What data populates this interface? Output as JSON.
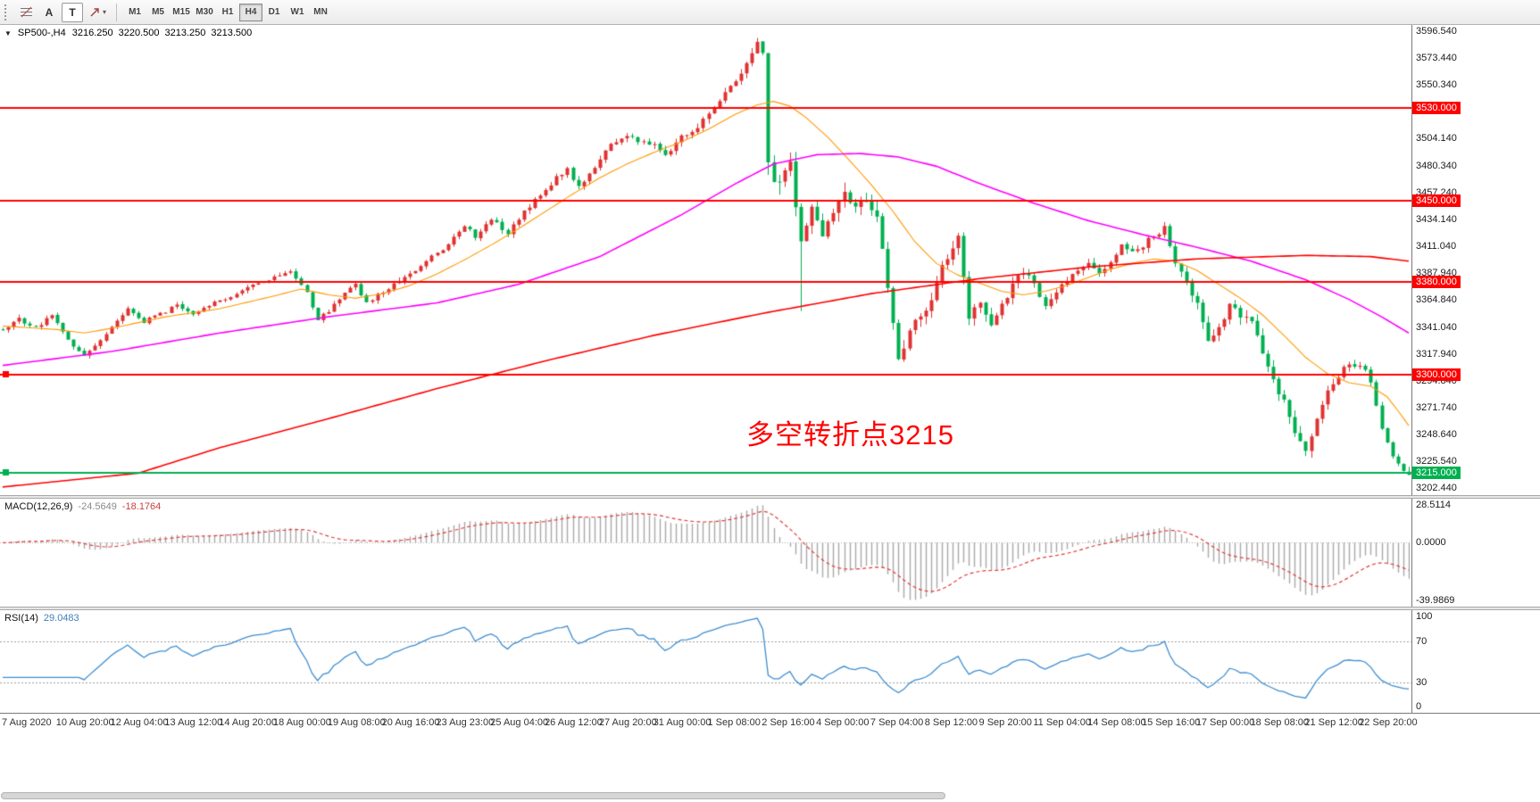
{
  "toolbar": {
    "text_tool_label": "A",
    "text_label_tool_label": "T",
    "timeframes": [
      {
        "label": "M1",
        "active": false
      },
      {
        "label": "M5",
        "active": false
      },
      {
        "label": "M15",
        "active": false
      },
      {
        "label": "M30",
        "active": false
      },
      {
        "label": "H1",
        "active": false
      },
      {
        "label": "H4",
        "active": true
      },
      {
        "label": "D1",
        "active": false
      },
      {
        "label": "W1",
        "active": false
      },
      {
        "label": "MN",
        "active": false
      }
    ]
  },
  "main_chart": {
    "title_symbol": "SP500-,H4",
    "ohlc": {
      "open": "3216.250",
      "high": "3220.500",
      "low": "3213.250",
      "close": "3213.500"
    },
    "annotation": {
      "text": "多空转折点3215",
      "color": "#ff0000"
    },
    "y_axis_labels": [
      "3596.540",
      "3573.440",
      "3550.340",
      "3527.240",
      "3504.140",
      "3480.340",
      "3457.240",
      "3434.140",
      "3411.040",
      "3387.940",
      "3364.840",
      "3341.040",
      "3317.940",
      "3294.840",
      "3271.740",
      "3248.640",
      "3225.540",
      "3202.440"
    ]
  },
  "macd_panel": {
    "label": "MACD(12,26,9)",
    "value_main": "-24.5649",
    "value_signal": "-18.1764",
    "axis": {
      "top": "28.5114",
      "zero": "0.0000",
      "bottom": "-39.9869"
    }
  },
  "rsi_panel": {
    "label": "RSI(14)",
    "value": "29.0483",
    "axis": {
      "top": "100",
      "upper": "70",
      "lower": "30",
      "bottom": "0"
    }
  },
  "chart_data": {
    "type": "candlestick",
    "symbol": "SP500-",
    "timeframe": "H4",
    "bar_count": 260,
    "y_range": [
      3196,
      3602
    ],
    "x_label_step_bars": 10,
    "x_labels": [
      "7 Aug 2020",
      "10 Aug 20:00",
      "12 Aug 04:00",
      "13 Aug 12:00",
      "14 Aug 20:00",
      "18 Aug 00:00",
      "19 Aug 08:00",
      "20 Aug 16:00",
      "23 Aug 23:00",
      "25 Aug 04:00",
      "26 Aug 12:00",
      "27 Aug 20:00",
      "31 Aug 00:00",
      "1 Sep 08:00",
      "2 Sep 16:00",
      "4 Sep 00:00",
      "7 Sep 04:00",
      "8 Sep 12:00",
      "9 Sep 20:00",
      "11 Sep 04:00",
      "14 Sep 08:00",
      "15 Sep 16:00",
      "17 Sep 00:00",
      "18 Sep 08:00",
      "21 Sep 12:00",
      "22 Sep 20:00"
    ],
    "candle_colors": {
      "bull": "#e03232",
      "bear": "#00b050"
    },
    "current_bar": {
      "open": 3216.25,
      "high": 3220.5,
      "low": 3213.25,
      "close": 3213.5
    },
    "close_path": [
      [
        0,
        3338
      ],
      [
        3,
        3348
      ],
      [
        6,
        3340
      ],
      [
        9,
        3352
      ],
      [
        12,
        3330
      ],
      [
        15,
        3316
      ],
      [
        17,
        3326
      ],
      [
        20,
        3340
      ],
      [
        23,
        3356
      ],
      [
        26,
        3346
      ],
      [
        29,
        3352
      ],
      [
        32,
        3360
      ],
      [
        35,
        3352
      ],
      [
        38,
        3360
      ],
      [
        41,
        3366
      ],
      [
        44,
        3372
      ],
      [
        47,
        3380
      ],
      [
        50,
        3384
      ],
      [
        53,
        3390
      ],
      [
        56,
        3370
      ],
      [
        58,
        3348
      ],
      [
        60,
        3355
      ],
      [
        63,
        3372
      ],
      [
        65,
        3378
      ],
      [
        67,
        3362
      ],
      [
        70,
        3372
      ],
      [
        73,
        3382
      ],
      [
        76,
        3390
      ],
      [
        79,
        3402
      ],
      [
        82,
        3412
      ],
      [
        85,
        3428
      ],
      [
        87,
        3420
      ],
      [
        90,
        3434
      ],
      [
        93,
        3422
      ],
      [
        96,
        3440
      ],
      [
        99,
        3455
      ],
      [
        102,
        3470
      ],
      [
        104,
        3477
      ],
      [
        106,
        3462
      ],
      [
        109,
        3480
      ],
      [
        112,
        3498
      ],
      [
        115,
        3508
      ],
      [
        118,
        3500
      ],
      [
        120,
        3498
      ],
      [
        122,
        3488
      ],
      [
        125,
        3505
      ],
      [
        128,
        3515
      ],
      [
        130,
        3526
      ],
      [
        133,
        3542
      ],
      [
        135,
        3552
      ],
      [
        137,
        3568
      ],
      [
        139,
        3585
      ],
      [
        140,
        3577
      ],
      [
        141,
        3480
      ],
      [
        143,
        3465
      ],
      [
        145,
        3480
      ],
      [
        147,
        3420
      ],
      [
        149,
        3445
      ],
      [
        151,
        3420
      ],
      [
        153,
        3440
      ],
      [
        155,
        3455
      ],
      [
        157,
        3445
      ],
      [
        159,
        3452
      ],
      [
        161,
        3440
      ],
      [
        163,
        3372
      ],
      [
        165,
        3310
      ],
      [
        167,
        3340
      ],
      [
        169,
        3352
      ],
      [
        171,
        3365
      ],
      [
        173,
        3392
      ],
      [
        175,
        3410
      ],
      [
        176,
        3422
      ],
      [
        178,
        3352
      ],
      [
        180,
        3365
      ],
      [
        182,
        3345
      ],
      [
        184,
        3360
      ],
      [
        186,
        3378
      ],
      [
        188,
        3388
      ],
      [
        190,
        3380
      ],
      [
        192,
        3360
      ],
      [
        194,
        3372
      ],
      [
        196,
        3382
      ],
      [
        198,
        3390
      ],
      [
        200,
        3395
      ],
      [
        202,
        3388
      ],
      [
        204,
        3398
      ],
      [
        206,
        3412
      ],
      [
        208,
        3405
      ],
      [
        210,
        3412
      ],
      [
        212,
        3420
      ],
      [
        214,
        3426
      ],
      [
        216,
        3398
      ],
      [
        218,
        3380
      ],
      [
        220,
        3360
      ],
      [
        222,
        3330
      ],
      [
        224,
        3340
      ],
      [
        226,
        3360
      ],
      [
        228,
        3352
      ],
      [
        230,
        3345
      ],
      [
        232,
        3320
      ],
      [
        234,
        3298
      ],
      [
        236,
        3275
      ],
      [
        238,
        3248
      ],
      [
        240,
        3235
      ],
      [
        242,
        3265
      ],
      [
        244,
        3288
      ],
      [
        246,
        3300
      ],
      [
        248,
        3308
      ],
      [
        250,
        3310
      ],
      [
        252,
        3295
      ],
      [
        254,
        3255
      ],
      [
        256,
        3228
      ],
      [
        258,
        3218
      ],
      [
        259,
        3213.5
      ]
    ],
    "volatility_path": [
      [
        0,
        5
      ],
      [
        60,
        5
      ],
      [
        80,
        6
      ],
      [
        120,
        7
      ],
      [
        138,
        9
      ],
      [
        141,
        22
      ],
      [
        150,
        16
      ],
      [
        165,
        14
      ],
      [
        180,
        12
      ],
      [
        200,
        8
      ],
      [
        214,
        8
      ],
      [
        222,
        12
      ],
      [
        240,
        12
      ],
      [
        250,
        8
      ],
      [
        259,
        4
      ]
    ],
    "wick_overrides": [
      [
        147,
        "low",
        3355
      ]
    ],
    "horizontal_lines": [
      {
        "value": 3530,
        "label": "3530.000",
        "color": "#ff0000",
        "handle": false
      },
      {
        "value": 3450,
        "label": "3450.000",
        "color": "#ff0000",
        "handle": false
      },
      {
        "value": 3380,
        "label": "3380.000",
        "color": "#ff0000",
        "handle": false
      },
      {
        "value": 3300,
        "label": "3300.000",
        "color": "#ff0000",
        "handle": true
      },
      {
        "value": 3215,
        "label": "3215.000",
        "color": "#00b050",
        "handle": true
      }
    ],
    "moving_averages": [
      {
        "name": "MA-fast",
        "color": "#ff9900",
        "width": 1.1,
        "points": [
          [
            0,
            3342
          ],
          [
            10,
            3339
          ],
          [
            15,
            3336
          ],
          [
            20,
            3340
          ],
          [
            30,
            3350
          ],
          [
            40,
            3357
          ],
          [
            50,
            3368
          ],
          [
            55,
            3374
          ],
          [
            60,
            3369
          ],
          [
            65,
            3366
          ],
          [
            70,
            3370
          ],
          [
            75,
            3377
          ],
          [
            80,
            3387
          ],
          [
            85,
            3399
          ],
          [
            90,
            3412
          ],
          [
            95,
            3426
          ],
          [
            100,
            3441
          ],
          [
            105,
            3456
          ],
          [
            110,
            3470
          ],
          [
            115,
            3482
          ],
          [
            120,
            3492
          ],
          [
            125,
            3501
          ],
          [
            130,
            3512
          ],
          [
            135,
            3525
          ],
          [
            139,
            3533
          ],
          [
            142,
            3536
          ],
          [
            145,
            3532
          ],
          [
            148,
            3522
          ],
          [
            152,
            3505
          ],
          [
            156,
            3485
          ],
          [
            160,
            3464
          ],
          [
            164,
            3441
          ],
          [
            168,
            3415
          ],
          [
            172,
            3396
          ],
          [
            176,
            3386
          ],
          [
            180,
            3379
          ],
          [
            184,
            3372
          ],
          [
            188,
            3369
          ],
          [
            192,
            3372
          ],
          [
            196,
            3377
          ],
          [
            200,
            3384
          ],
          [
            204,
            3391
          ],
          [
            208,
            3396
          ],
          [
            212,
            3400
          ],
          [
            216,
            3398
          ],
          [
            220,
            3390
          ],
          [
            224,
            3378
          ],
          [
            228,
            3366
          ],
          [
            232,
            3352
          ],
          [
            236,
            3334
          ],
          [
            240,
            3315
          ],
          [
            244,
            3301
          ],
          [
            248,
            3293
          ],
          [
            252,
            3290
          ],
          [
            255,
            3281
          ],
          [
            257,
            3269
          ],
          [
            259,
            3256
          ]
        ]
      },
      {
        "name": "MA-medium",
        "color": "#ff00ff",
        "width": 1.6,
        "points": [
          [
            0,
            3308
          ],
          [
            20,
            3320
          ],
          [
            40,
            3336
          ],
          [
            60,
            3350
          ],
          [
            80,
            3362
          ],
          [
            95,
            3378
          ],
          [
            110,
            3402
          ],
          [
            125,
            3438
          ],
          [
            135,
            3465
          ],
          [
            142,
            3482
          ],
          [
            150,
            3490
          ],
          [
            158,
            3491
          ],
          [
            165,
            3488
          ],
          [
            172,
            3480
          ],
          [
            180,
            3465
          ],
          [
            190,
            3448
          ],
          [
            200,
            3433
          ],
          [
            210,
            3421
          ],
          [
            220,
            3410
          ],
          [
            230,
            3398
          ],
          [
            240,
            3382
          ],
          [
            248,
            3365
          ],
          [
            254,
            3350
          ],
          [
            259,
            3336
          ]
        ]
      },
      {
        "name": "MA-slow",
        "color": "#ff0000",
        "width": 1.6,
        "points": [
          [
            0,
            3203
          ],
          [
            25,
            3215
          ],
          [
            40,
            3237
          ],
          [
            60,
            3262
          ],
          [
            80,
            3288
          ],
          [
            100,
            3312
          ],
          [
            120,
            3334
          ],
          [
            140,
            3353
          ],
          [
            160,
            3370
          ],
          [
            180,
            3383
          ],
          [
            200,
            3393
          ],
          [
            220,
            3400
          ],
          [
            240,
            3403
          ],
          [
            252,
            3402
          ],
          [
            259,
            3398
          ]
        ]
      }
    ],
    "indicators": {
      "macd": {
        "fast": 12,
        "slow": 26,
        "signal": 9,
        "histogram_color": "#a9a9a9",
        "signal_color": "#e23b3b",
        "signal_style": "dashed"
      },
      "rsi": {
        "period": 14,
        "color": "#3f8ed0",
        "levels": [
          70,
          30
        ]
      }
    }
  }
}
